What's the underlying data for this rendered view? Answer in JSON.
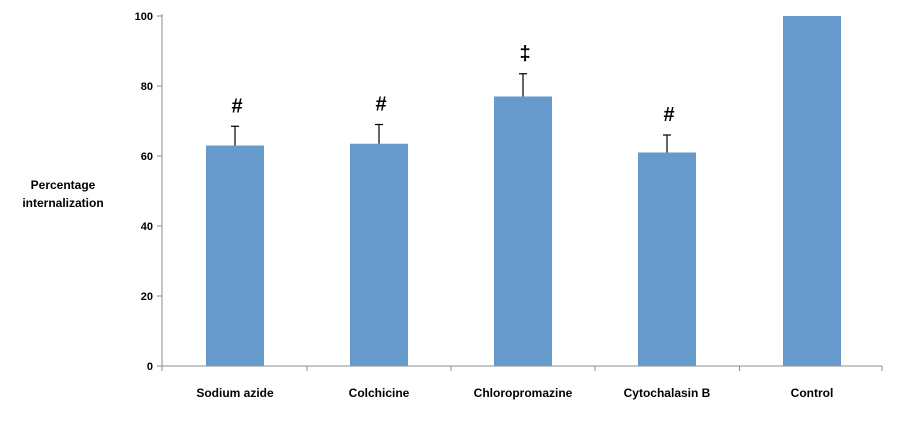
{
  "chart_data": {
    "type": "bar",
    "ylabel_lines": [
      "Percentage",
      "internalization"
    ],
    "xlabel": "",
    "ylim": [
      0,
      100
    ],
    "yticks": [
      0,
      20,
      40,
      60,
      80,
      100
    ],
    "categories": [
      "Sodium azide",
      "Colchicine",
      "Chloropromazine",
      "Cytochalasin B",
      "Control"
    ],
    "values": [
      63,
      63.5,
      77,
      61,
      100
    ],
    "error_upper": [
      68.5,
      69,
      83.5,
      66,
      null
    ],
    "markers": [
      "#",
      "#",
      "‡",
      "#",
      ""
    ],
    "grid": false,
    "bar_color": "#6699cc"
  }
}
